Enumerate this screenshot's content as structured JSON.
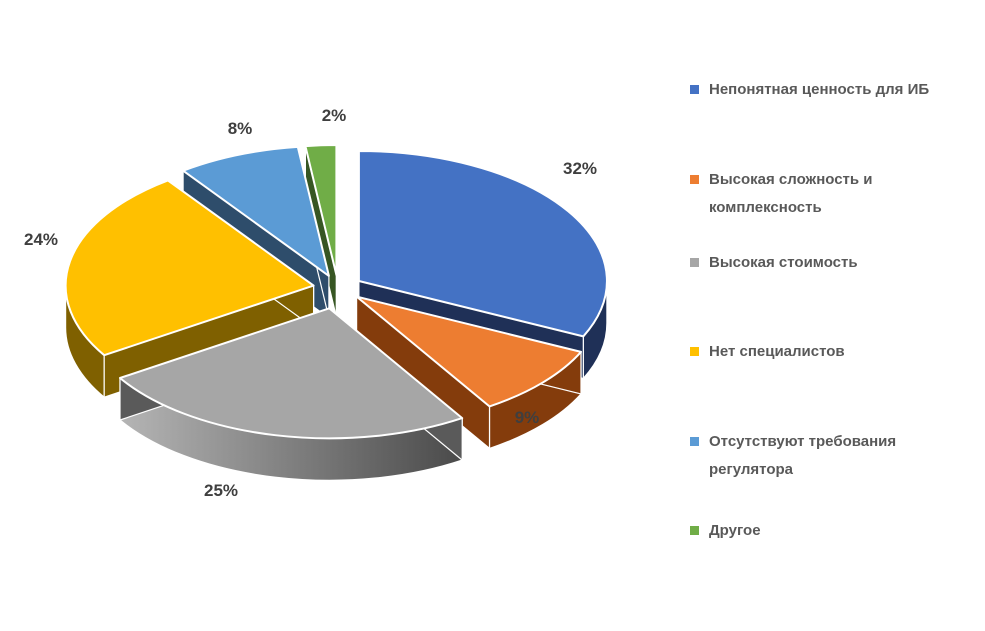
{
  "chart_data": {
    "type": "pie",
    "style": "3d-exploded-pie",
    "title": "",
    "legend_position": "right",
    "start_angle_deg": 0,
    "direction": "clockwise",
    "unit": "%",
    "categories": [
      "Непонятная ценность для ИБ",
      "Высокая сложность и комплексность",
      "Высокая стоимость",
      "Нет специалистов",
      "Отсутствуют требования регулятора",
      "Другое"
    ],
    "values": [
      32,
      9,
      25,
      24,
      8,
      2
    ],
    "labels": [
      "32%",
      "9%",
      "25%",
      "24%",
      "8%",
      "2%"
    ],
    "colors": [
      "#4472C4",
      "#ED7D31",
      "#A6A6A6",
      "#FFC000",
      "#5B9BD5",
      "#70AD47"
    ],
    "side_colors": [
      "#1F3057",
      "#843C0C",
      "#5A5A5A",
      "#7F6000",
      "#2E4D6B",
      "#375623"
    ],
    "gray_wall_gradient": [
      "#B5B5B5",
      "#4A4A4A"
    ]
  },
  "colors": {
    "background": "#FFFFFF",
    "value_label_text": "#3F3F3F",
    "legend_text": "#595959",
    "slice_outline": "#FFFFFF"
  }
}
